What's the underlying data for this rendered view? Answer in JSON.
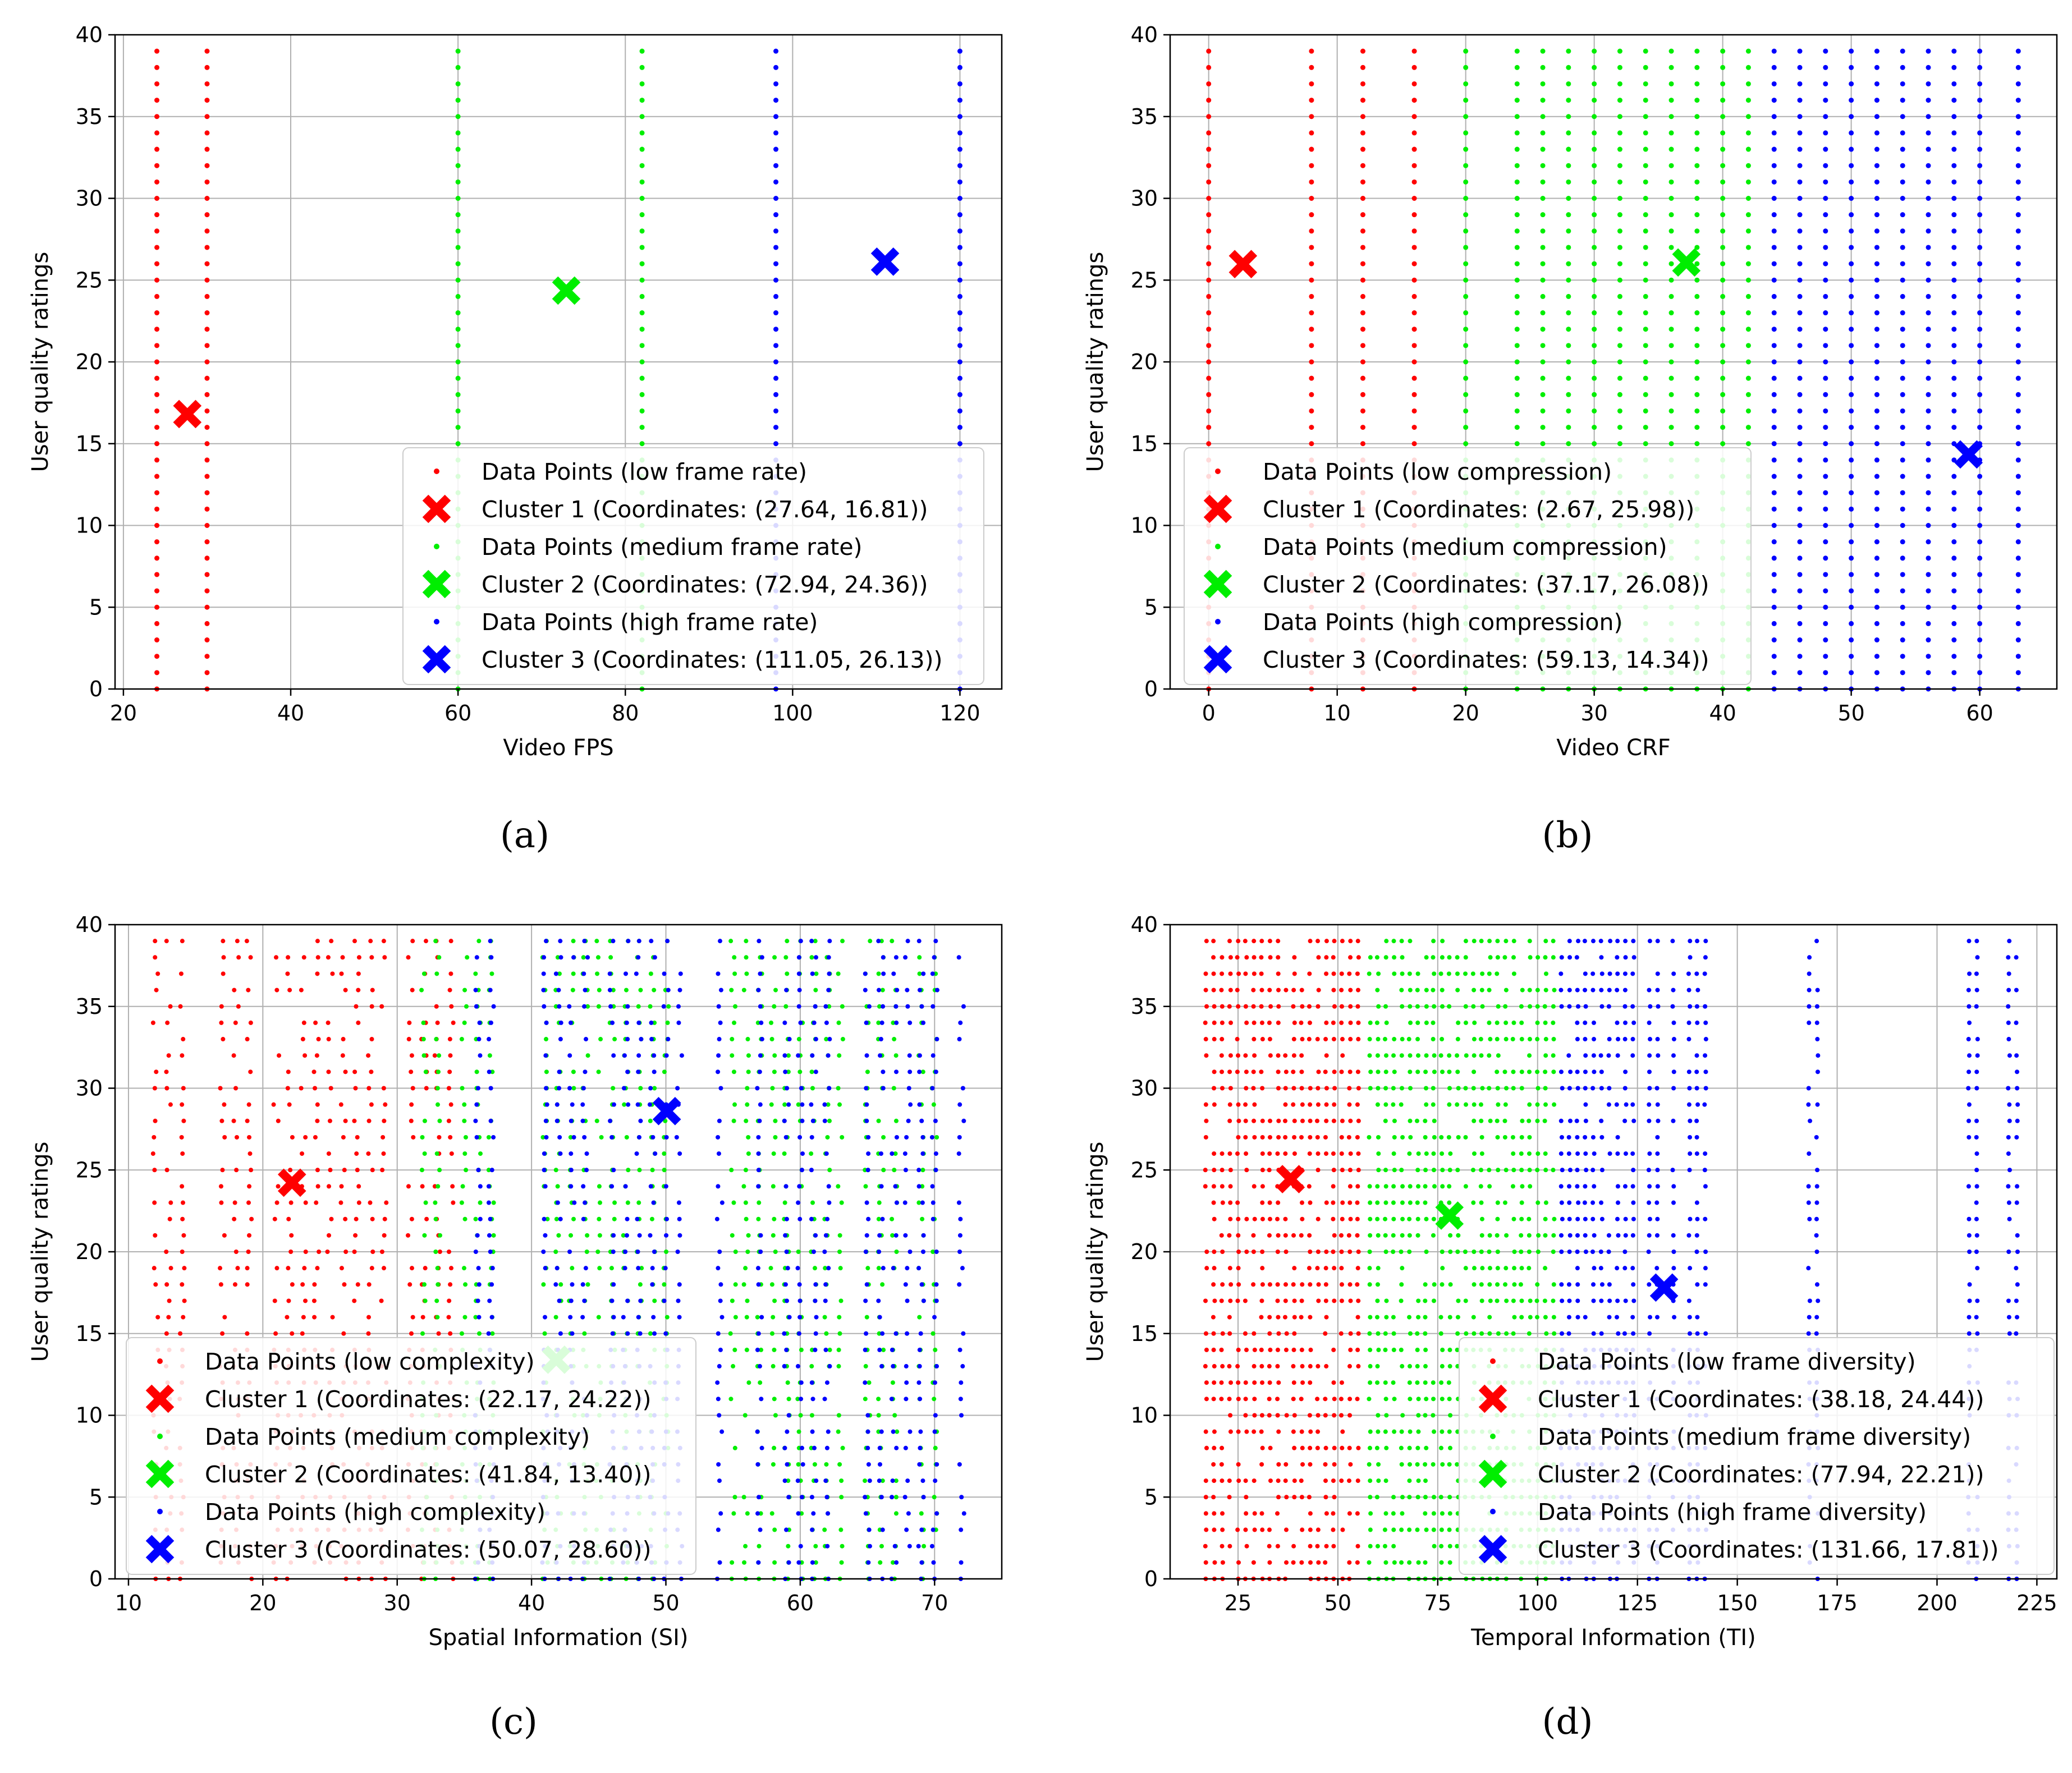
{
  "colors": {
    "cluster1": "#ff0000",
    "cluster2": "#00ee00",
    "cluster3": "#0000ff",
    "grid": "#b0b0b0"
  },
  "chart_data": [
    {
      "type": "scatter",
      "caption": "(a)",
      "xlabel": "Video FPS",
      "ylabel": "User quality ratings",
      "xlim": [
        19,
        125
      ],
      "ylim": [
        0,
        40
      ],
      "xticks": [
        20,
        40,
        60,
        80,
        100,
        120
      ],
      "yticks": [
        0,
        5,
        10,
        15,
        20,
        25,
        30,
        35,
        40
      ],
      "grid": true,
      "legend_position": "lower-right",
      "series": [
        {
          "name": "Data Points (low frame rate)",
          "cluster": 1,
          "x": [
            24,
            30
          ]
        },
        {
          "name": "Data Points (medium frame rate)",
          "cluster": 2,
          "x": [
            60,
            82
          ]
        },
        {
          "name": "Data Points (high frame rate)",
          "cluster": 3,
          "x": [
            98,
            120
          ]
        }
      ],
      "centroids": [
        {
          "name": "Cluster 1 (Coordinates: (27.64, 16.81))",
          "x": 27.64,
          "y": 16.81
        },
        {
          "name": "Cluster 2 (Coordinates: (72.94, 24.36))",
          "x": 72.94,
          "y": 24.36
        },
        {
          "name": "Cluster 3 (Coordinates: (111.05, 26.13))",
          "x": 111.05,
          "y": 26.13
        }
      ]
    },
    {
      "type": "scatter",
      "caption": "(b)",
      "xlabel": "Video CRF",
      "ylabel": "User quality ratings",
      "xlim": [
        -3,
        66
      ],
      "ylim": [
        0,
        40
      ],
      "xticks": [
        0,
        10,
        20,
        30,
        40,
        50,
        60
      ],
      "yticks": [
        0,
        5,
        10,
        15,
        20,
        25,
        30,
        35,
        40
      ],
      "grid": true,
      "legend_position": "lower-left",
      "series": [
        {
          "name": "Data Points (low compression)",
          "cluster": 1,
          "x": [
            0,
            8,
            12,
            16
          ]
        },
        {
          "name": "Data Points (medium compression)",
          "cluster": 2,
          "x": [
            20,
            24,
            26,
            28,
            30,
            32,
            34,
            36,
            38,
            40,
            42
          ]
        },
        {
          "name": "Data Points (high compression)",
          "cluster": 3,
          "x": [
            44,
            46,
            48,
            50,
            52,
            54,
            56,
            58,
            60,
            63
          ]
        }
      ],
      "centroids": [
        {
          "name": "Cluster 1 (Coordinates: (2.67, 25.98))",
          "x": 2.67,
          "y": 25.98
        },
        {
          "name": "Cluster 2 (Coordinates: (37.17, 26.08))",
          "x": 37.17,
          "y": 26.08
        },
        {
          "name": "Cluster 3 (Coordinates: (59.13, 14.34))",
          "x": 59.13,
          "y": 14.34
        }
      ]
    },
    {
      "type": "scatter",
      "caption": "(c)",
      "xlabel": "Spatial Information (SI)",
      "ylabel": "User quality ratings",
      "xlim": [
        9,
        75
      ],
      "ylim": [
        0,
        40
      ],
      "xticks": [
        10,
        20,
        30,
        40,
        50,
        60,
        70
      ],
      "yticks": [
        0,
        5,
        10,
        15,
        20,
        25,
        30,
        35,
        40
      ],
      "grid": true,
      "legend_position": "lower-left",
      "series": [
        {
          "name": "Data Points (low complexity)",
          "cluster": 1,
          "x": [
            12,
            13,
            14,
            17,
            18,
            19,
            21,
            22,
            23,
            24,
            25,
            26,
            27,
            28,
            29,
            31,
            32,
            33,
            34
          ]
        },
        {
          "name": "Data Points (medium complexity)",
          "cluster": 2,
          "x": [
            32,
            33,
            35,
            36,
            37,
            41,
            42,
            43,
            44,
            45,
            46,
            47,
            48,
            49,
            50,
            55,
            56,
            57,
            58,
            59,
            60,
            61,
            62,
            63,
            65,
            66,
            67,
            69,
            70
          ]
        },
        {
          "name": "Data Points (high complexity)",
          "cluster": 3,
          "x": [
            36,
            37,
            41,
            42,
            43,
            44,
            46,
            47,
            48,
            49,
            50,
            51,
            54,
            57,
            59,
            60,
            61,
            62,
            65,
            66,
            67,
            68,
            69,
            70,
            72
          ]
        }
      ],
      "centroids": [
        {
          "name": "Cluster 1 (Coordinates: (22.17, 24.22))",
          "x": 22.17,
          "y": 24.22
        },
        {
          "name": "Cluster 2 (Coordinates: (41.84, 13.40))",
          "x": 41.84,
          "y": 13.4
        },
        {
          "name": "Cluster 3 (Coordinates: (50.07, 28.60))",
          "x": 50.07,
          "y": 28.6
        }
      ]
    },
    {
      "type": "scatter",
      "caption": "(d)",
      "xlabel": "Temporal Information (TI)",
      "ylabel": "User quality ratings",
      "xlim": [
        8,
        230
      ],
      "ylim": [
        0,
        40
      ],
      "xticks": [
        25,
        50,
        75,
        100,
        125,
        150,
        175,
        200,
        225
      ],
      "yticks": [
        0,
        5,
        10,
        15,
        20,
        25,
        30,
        35,
        40
      ],
      "grid": true,
      "legend_position": "lower-right",
      "series": [
        {
          "name": "Data Points (low frame diversity)",
          "cluster": 1,
          "x": [
            17,
            19,
            21,
            23,
            25,
            27,
            29,
            31,
            33,
            35,
            37,
            39,
            41,
            43,
            45,
            47,
            49,
            51,
            53,
            55
          ]
        },
        {
          "name": "Data Points (medium frame diversity)",
          "cluster": 2,
          "x": [
            58,
            60,
            62,
            64,
            66,
            68,
            70,
            72,
            74,
            76,
            78,
            80,
            82,
            84,
            86,
            88,
            90,
            92,
            94,
            96,
            98,
            100,
            102,
            104
          ]
        },
        {
          "name": "Data Points (high frame diversity)",
          "cluster": 3,
          "x": [
            106,
            108,
            110,
            112,
            114,
            116,
            118,
            120,
            122,
            124,
            128,
            130,
            134,
            138,
            140,
            142,
            168,
            170,
            208,
            210,
            218,
            220
          ]
        }
      ],
      "centroids": [
        {
          "name": "Cluster 1 (Coordinates: (38.18, 24.44))",
          "x": 38.18,
          "y": 24.44
        },
        {
          "name": "Cluster 2 (Coordinates: (77.94, 22.21))",
          "x": 77.94,
          "y": 22.21
        },
        {
          "name": "Cluster 3 (Coordinates: (131.66, 17.81))",
          "x": 131.66,
          "y": 17.81
        }
      ]
    }
  ]
}
